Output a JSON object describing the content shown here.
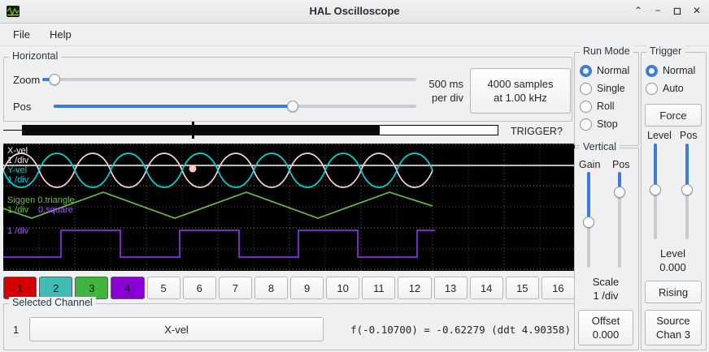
{
  "window": {
    "title": "HAL Oscilloscope",
    "controls": [
      "⌃",
      "−",
      "◻",
      "✕"
    ]
  },
  "menu": {
    "file": "File",
    "help": "Help"
  },
  "horizontal": {
    "title": "Horizontal",
    "zoom_label": "Zoom",
    "pos_label": "Pos",
    "perdiv_line1": "500 ms",
    "perdiv_line2": "per div",
    "samples_line1": "4000 samples",
    "samples_line2": "at 1.00 kHz",
    "trigger_question": "TRIGGER?"
  },
  "scope": {
    "ch1_name": "X-vel",
    "ch1_div": "1 /div",
    "ch2_name": "Y-vel",
    "ch2_div": "1 /div",
    "ch3_name": "Siggen 0.triangle",
    "ch3_div": "1 /div",
    "ch4_name": "0.square",
    "ch4_div": "1 /div"
  },
  "channel_buttons": {
    "items": [
      {
        "label": "1",
        "color": "#d40000",
        "selected": true
      },
      {
        "label": "2",
        "color": "#3fbdb5"
      },
      {
        "label": "3",
        "color": "#3fb53f"
      },
      {
        "label": "4",
        "color": "#8a00d4"
      },
      {
        "label": "5"
      },
      {
        "label": "6"
      },
      {
        "label": "7"
      },
      {
        "label": "8"
      },
      {
        "label": "9"
      },
      {
        "label": "10"
      },
      {
        "label": "11"
      },
      {
        "label": "12"
      },
      {
        "label": "13"
      },
      {
        "label": "14"
      },
      {
        "label": "15"
      },
      {
        "label": "16"
      }
    ]
  },
  "selected_channel": {
    "title": "Selected Channel",
    "index": "1",
    "channel_button": "X-vel",
    "readout": "f(-0.10700) = -0.62279 (ddt  4.90358)"
  },
  "run_mode": {
    "title": "Run Mode",
    "options": [
      {
        "label": "Normal",
        "checked": true
      },
      {
        "label": "Single",
        "checked": false
      },
      {
        "label": "Roll",
        "checked": false
      },
      {
        "label": "Stop",
        "checked": false
      }
    ]
  },
  "trigger": {
    "title": "Trigger",
    "options": [
      {
        "label": "Normal",
        "checked": true
      },
      {
        "label": "Auto",
        "checked": false
      }
    ],
    "force": "Force",
    "level_label": "Level",
    "pos_label": "Pos",
    "readout_label": "Level",
    "readout_value": "0.000",
    "rising": "Rising",
    "source_line1": "Source",
    "source_line2": "Chan 3"
  },
  "vertical": {
    "title": "Vertical",
    "gain_label": "Gain",
    "pos_label": "Pos",
    "scale_label": "Scale",
    "scale_value": "1 /div",
    "offset_label": "Offset",
    "offset_value": "0.000"
  },
  "colors": {
    "accent_blue": "#3b7dd8",
    "ch1_trace": "#ffd2da",
    "ch2_trace": "#00d7d7",
    "ch3_trace": "#6abf40",
    "ch4_trace": "#8833dd",
    "ch1_button": "#d40000",
    "ch2_button": "#3fbdb5",
    "ch3_button": "#3fb53f",
    "ch4_button": "#8a00d4"
  }
}
